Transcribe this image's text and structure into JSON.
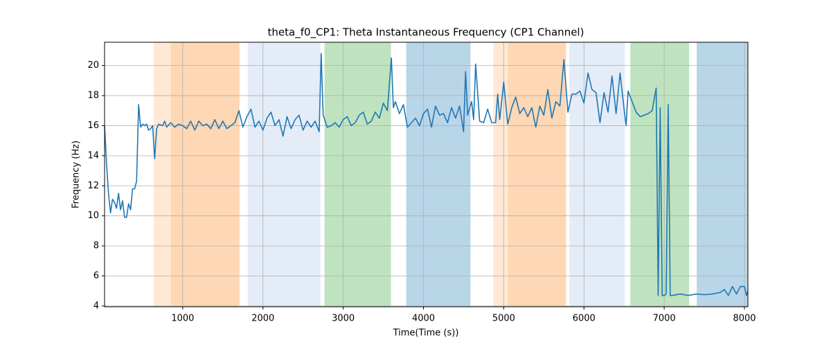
{
  "chart_data": {
    "type": "line",
    "title": "theta_f0_CP1: Theta Instantaneous Frequency (CP1 Channel)",
    "x_label": "Time(Time (s))",
    "y_label": "Frequency (Hz)",
    "color": "#1f77b4",
    "grid": true,
    "xlim": [
      26,
      8043
    ],
    "ylim": [
      3.95,
      21.55
    ],
    "xticks": [
      1000,
      2000,
      3000,
      4000,
      5000,
      6000,
      7000,
      8000
    ],
    "yticks": [
      4,
      6,
      8,
      10,
      12,
      14,
      16,
      18,
      20
    ],
    "spans": [
      {
        "start": 638,
        "end": 854,
        "color": "#ffe8d4"
      },
      {
        "start": 854,
        "end": 1707,
        "color": "#fed7b4"
      },
      {
        "start": 1810,
        "end": 2716,
        "color": "#e4ecf7"
      },
      {
        "start": 2767,
        "end": 3595,
        "color": "#bfe3bf"
      },
      {
        "start": 3785,
        "end": 4586,
        "color": "#b9d5e8"
      },
      {
        "start": 4871,
        "end": 5052,
        "color": "#ffe8d4"
      },
      {
        "start": 5052,
        "end": 5776,
        "color": "#fed7b4"
      },
      {
        "start": 5819,
        "end": 6509,
        "color": "#e4ecf7"
      },
      {
        "start": 6578,
        "end": 7310,
        "color": "#bfe3bf"
      },
      {
        "start": 7405,
        "end": 8043,
        "color": "#b9d5e8"
      }
    ],
    "x": [
      26,
      50,
      75,
      100,
      125,
      150,
      175,
      200,
      225,
      250,
      275,
      300,
      325,
      350,
      375,
      400,
      425,
      450,
      475,
      500,
      525,
      550,
      575,
      600,
      625,
      650,
      675,
      700,
      750,
      775,
      800,
      850,
      900,
      950,
      1000,
      1050,
      1100,
      1150,
      1200,
      1250,
      1300,
      1350,
      1400,
      1450,
      1500,
      1550,
      1600,
      1650,
      1700,
      1750,
      1800,
      1850,
      1900,
      1950,
      2000,
      2050,
      2100,
      2150,
      2200,
      2250,
      2300,
      2350,
      2400,
      2450,
      2500,
      2550,
      2600,
      2650,
      2700,
      2725,
      2750,
      2800,
      2850,
      2900,
      2950,
      3000,
      3050,
      3100,
      3150,
      3200,
      3250,
      3300,
      3350,
      3400,
      3450,
      3500,
      3550,
      3600,
      3625,
      3650,
      3700,
      3750,
      3800,
      3850,
      3900,
      3950,
      4000,
      4050,
      4100,
      4150,
      4200,
      4250,
      4300,
      4350,
      4400,
      4450,
      4500,
      4525,
      4550,
      4600,
      4625,
      4650,
      4700,
      4750,
      4800,
      4850,
      4900,
      4925,
      4950,
      5000,
      5050,
      5100,
      5150,
      5200,
      5250,
      5300,
      5350,
      5400,
      5450,
      5500,
      5550,
      5600,
      5650,
      5700,
      5750,
      5800,
      5850,
      5900,
      5950,
      6000,
      6050,
      6100,
      6150,
      6200,
      6250,
      6300,
      6350,
      6400,
      6450,
      6500,
      6525,
      6550,
      6600,
      6650,
      6700,
      6750,
      6800,
      6850,
      6900,
      6925,
      6950,
      6975,
      7000,
      7025,
      7050,
      7075,
      7100,
      7200,
      7300,
      7400,
      7500,
      7600,
      7700,
      7750,
      7800,
      7850,
      7900,
      7950,
      8000,
      8025,
      8043
    ],
    "values": [
      16,
      13.5,
      11.5,
      10.2,
      11.1,
      10.9,
      10.5,
      11.5,
      10.4,
      11,
      9.9,
      9.9,
      10.8,
      10.4,
      11.8,
      11.8,
      12.3,
      17.4,
      15.9,
      16.1,
      16,
      16.1,
      15.7,
      15.8,
      16,
      13.8,
      15.8,
      16.1,
      16,
      16.3,
      15.9,
      16.2,
      15.9,
      16.1,
      16,
      15.8,
      16.3,
      15.7,
      16.3,
      16,
      16.1,
      15.8,
      16.4,
      15.8,
      16.3,
      15.8,
      16,
      16.2,
      17,
      15.9,
      16.6,
      17.1,
      15.9,
      16.3,
      15.7,
      16.5,
      16.9,
      16,
      16.4,
      15.3,
      16.6,
      15.8,
      16.4,
      16.7,
      15.7,
      16.3,
      15.9,
      16.3,
      15.6,
      20.8,
      16.7,
      15.9,
      16,
      16.2,
      15.9,
      16.4,
      16.6,
      16,
      16.2,
      16.7,
      16.9,
      16.1,
      16.3,
      16.9,
      16.5,
      17.5,
      17,
      20.5,
      17.2,
      17.6,
      16.8,
      17.4,
      15.9,
      16.2,
      16.5,
      16,
      16.8,
      17.1,
      15.9,
      17.3,
      16.7,
      16.8,
      16.2,
      17.2,
      16.5,
      17.3,
      15.6,
      19.6,
      16.7,
      17.6,
      16.4,
      20.1,
      16.3,
      16.2,
      17.1,
      16.2,
      16.2,
      18.1,
      16.4,
      18.9,
      16.1,
      17.2,
      17.9,
      16.8,
      17.2,
      16.6,
      17.2,
      15.9,
      17.3,
      16.7,
      18.4,
      16.5,
      17.6,
      17.3,
      20.4,
      16.9,
      18.1,
      18.1,
      18.3,
      17.5,
      19.5,
      18.4,
      18.2,
      16.2,
      18.2,
      16.9,
      19.3,
      16.8,
      19.5,
      17.1,
      16,
      18.3,
      17.6,
      16.9,
      16.6,
      16.7,
      16.8,
      17,
      18.5,
      4.7,
      17.2,
      4.7,
      4.7,
      4.8,
      17.4,
      4.7,
      4.7,
      4.8,
      4.7,
      4.8,
      4.75,
      4.8,
      4.9,
      5.1,
      4.7,
      5.3,
      4.8,
      5.3,
      5.3,
      4.7,
      5.0
    ]
  }
}
